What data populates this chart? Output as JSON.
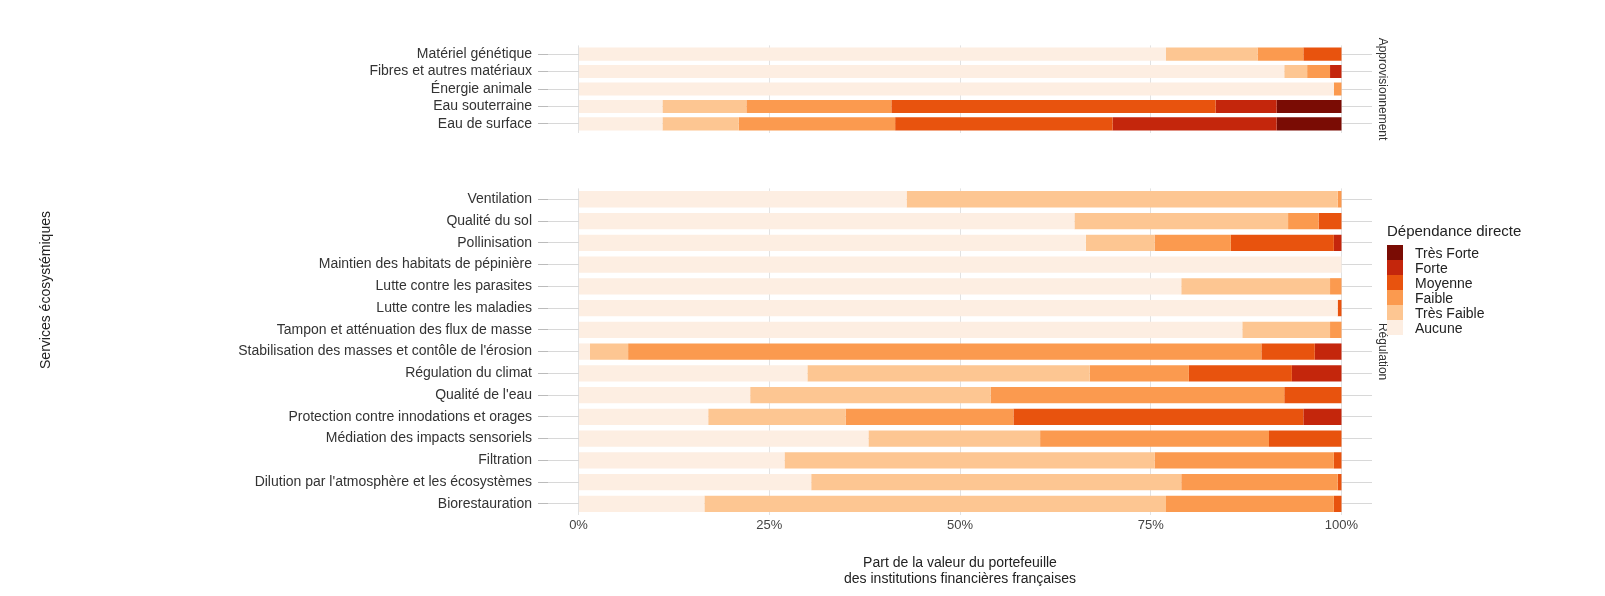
{
  "chart_data": [
    {
      "type": "bar",
      "orientation": "horizontal",
      "stacked": true,
      "title": "Approvisionnement",
      "categories": [
        "Matériel génétique",
        "Fibres et autres matériaux",
        "Énergie animale",
        "Eau souterraine",
        "Eau de surface"
      ],
      "series": [
        {
          "color": "#fdeee2",
          "values": [
            77,
            92.5,
            99,
            11,
            11
          ]
        },
        {
          "color": "#fdc692",
          "values": [
            12,
            3,
            0,
            11,
            10
          ]
        },
        {
          "color": "#fb9a4f",
          "values": [
            6,
            3,
            1,
            19,
            20.5
          ]
        },
        {
          "color": "#e8530e",
          "values": [
            5,
            0,
            0,
            42.5,
            28.5
          ]
        },
        {
          "color": "#c4260c",
          "values": [
            0,
            1.5,
            0,
            8,
            21.5
          ]
        },
        {
          "color": "#7a0c04",
          "values": [
            0,
            0,
            0,
            8.5,
            8.5
          ]
        }
      ],
      "xlim": [
        -4,
        104
      ],
      "xticks": [
        {
          "value": 0,
          "label": null
        },
        {
          "value": 25,
          "label": null
        },
        {
          "value": 50,
          "label": null
        },
        {
          "value": 75,
          "label": null
        },
        {
          "value": 100,
          "label": null
        }
      ],
      "tick_labels": "y",
      "grid": true
    },
    {
      "type": "bar",
      "orientation": "horizontal",
      "stacked": true,
      "title": "Régulation",
      "xlabel": "Part de la valeur du portefeuille\ndes institutions financières françaises",
      "ylabel": "Services écosystémiques",
      "legend_title": "Dépendance directe",
      "legend": "right",
      "categories": [
        "Ventilation",
        "Qualité du sol",
        "Pollinisation",
        "Maintien des habitats de pépinière",
        "Lutte contre les parasites",
        "Lutte contre les maladies",
        "Tampon et atténuation des flux de masse",
        "Stabilisation des masses et contôle de l'érosion",
        "Régulation du climat",
        "Qualité de l'eau",
        "Protection contre innodations et orages",
        "Médiation des impacts sensoriels",
        "Filtration",
        "Dilution par l'atmosphère et les écosystèmes",
        "Biorestauration"
      ],
      "series": [
        {
          "name": "Aucune",
          "color": "#fdeee2",
          "values": [
            43,
            65,
            66.5,
            100,
            79,
            99.5,
            87,
            1.5,
            30,
            22.5,
            17,
            38,
            27,
            30.5,
            16.5
          ]
        },
        {
          "name": "Très Faible",
          "color": "#fdc692",
          "values": [
            56.5,
            28,
            9,
            0,
            19.5,
            0,
            11.5,
            5,
            37,
            31.5,
            18,
            22.5,
            48.5,
            48.5,
            60.5
          ]
        },
        {
          "name": "Faible",
          "color": "#fb9a4f",
          "values": [
            0.5,
            4,
            10,
            0,
            1.5,
            0,
            1.5,
            83,
            13,
            38.5,
            22,
            30,
            23.5,
            20.5,
            22
          ]
        },
        {
          "name": "Moyenne",
          "color": "#e8530e",
          "values": [
            0,
            3,
            13.5,
            0,
            0,
            0.5,
            0,
            7,
            13.5,
            7.5,
            38,
            9.5,
            1,
            0.5,
            1
          ]
        },
        {
          "name": "Forte",
          "color": "#c4260c",
          "values": [
            0,
            0,
            1,
            0,
            0,
            0,
            0,
            3.5,
            6.5,
            0,
            5,
            0,
            0,
            0,
            0
          ]
        },
        {
          "name": "Très Forte",
          "color": "#7a0c04",
          "values": [
            0,
            0,
            0,
            0,
            0,
            0,
            0,
            0,
            0,
            0,
            0,
            0,
            0,
            0,
            0
          ]
        }
      ],
      "xlim": [
        -4,
        104
      ],
      "xticks": [
        {
          "value": 0,
          "label": "0%"
        },
        {
          "value": 25,
          "label": "25%"
        },
        {
          "value": 50,
          "label": "50%"
        },
        {
          "value": 75,
          "label": "75%"
        },
        {
          "value": 100,
          "label": "100%"
        }
      ],
      "grid": true
    }
  ]
}
